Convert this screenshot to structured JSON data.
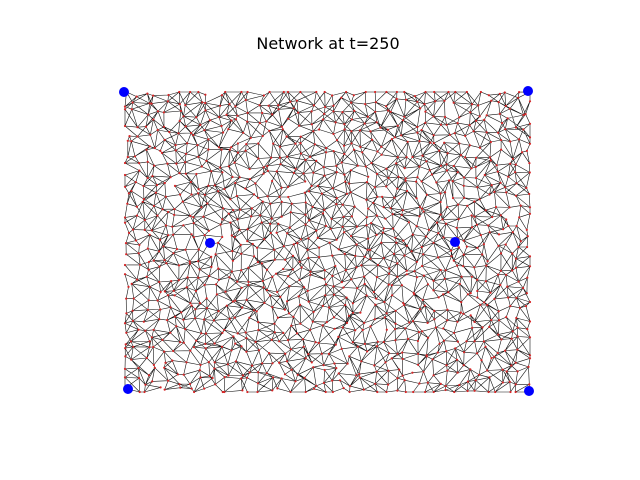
{
  "figure": {
    "title": "Network at t=250",
    "colors": {
      "edge": "#111111",
      "node": "#d62728",
      "hub": "#0000ff",
      "background": "#ffffff"
    },
    "hub_count": 6
  }
}
